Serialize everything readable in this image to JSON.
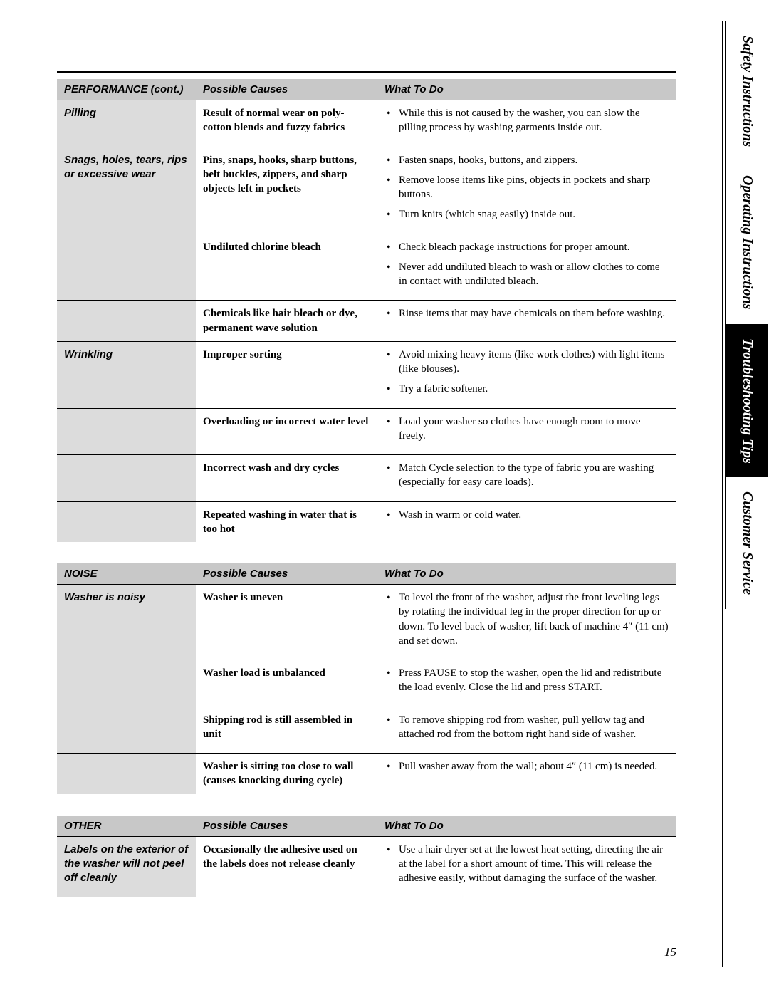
{
  "page_number": "15",
  "side_tabs": [
    {
      "label": "Safety Instructions",
      "style": "white"
    },
    {
      "label": "Operating Instructions",
      "style": "white"
    },
    {
      "label": "Troubleshooting Tips",
      "style": "black"
    },
    {
      "label": "Customer Service",
      "style": "white"
    }
  ],
  "tables": [
    {
      "headers": [
        "PERFORMANCE (cont.)",
        "Possible Causes",
        "What To Do"
      ],
      "rows": [
        {
          "problem": "Pilling",
          "cause": "Result of normal wear on poly-cotton blends and fuzzy fabrics",
          "todos": [
            "While this is not caused by the washer, you can slow the pilling process by washing garments inside out."
          ],
          "divider": true
        },
        {
          "problem": "Snags, holes, tears, rips or excessive wear",
          "cause": "Pins, snaps, hooks, sharp buttons, belt buckles, zippers, and sharp objects left in pockets",
          "todos": [
            "Fasten snaps, hooks, buttons, and zippers.",
            "Remove loose items like pins, objects in pockets and sharp buttons.",
            "Turn knits (which snag easily) inside out."
          ],
          "divider": true
        },
        {
          "problem": "",
          "cause": "Undiluted chlorine bleach",
          "todos": [
            "Check bleach package instructions for proper amount.",
            "Never add undiluted bleach to wash or allow clothes to come in contact with undiluted bleach."
          ],
          "divider": true
        },
        {
          "problem": "",
          "cause": "Chemicals like hair bleach or dye, permanent wave solution",
          "todos": [
            "Rinse items that may have chemicals on them before washing."
          ],
          "divider": true
        },
        {
          "problem": "Wrinkling",
          "cause": "Improper sorting",
          "todos": [
            "Avoid mixing heavy items (like work clothes) with light items (like blouses).",
            "Try a fabric softener."
          ],
          "divider": true
        },
        {
          "problem": "",
          "cause": "Overloading or incorrect water level",
          "todos": [
            "Load your washer so clothes have enough room to move freely."
          ],
          "divider": true
        },
        {
          "problem": "",
          "cause": "Incorrect wash and dry cycles",
          "todos": [
            "Match Cycle selection to the type of fabric you are washing (especially for easy care loads)."
          ],
          "divider": true
        },
        {
          "problem": "",
          "cause": "Repeated washing in water that is too hot",
          "todos": [
            "Wash in warm or cold water."
          ],
          "divider": false
        }
      ]
    },
    {
      "headers": [
        "NOISE",
        "Possible Causes",
        "What To Do"
      ],
      "rows": [
        {
          "problem": "Washer is noisy",
          "cause": "Washer is uneven",
          "todos": [
            "To level the front of the washer, adjust the front leveling legs by rotating the individual leg in the proper direction for up or down. To level back of washer, lift back of machine 4″ (11 cm) and set down."
          ],
          "divider": true
        },
        {
          "problem": "",
          "cause": "Washer load is unbalanced",
          "todos": [
            "Press PAUSE to stop the washer, open the lid and redistribute the load evenly. Close the lid and press START."
          ],
          "divider": true
        },
        {
          "problem": "",
          "cause": "Shipping rod is still assembled in unit",
          "todos": [
            "To remove shipping rod from washer, pull yellow tag and attached rod from the bottom right hand side of washer."
          ],
          "divider": true
        },
        {
          "problem": "",
          "cause": "Washer is sitting too close to wall (causes knocking during cycle)",
          "todos": [
            "Pull washer away from the wall; about 4″ (11 cm) is needed."
          ],
          "divider": false
        }
      ]
    },
    {
      "headers": [
        "OTHER",
        "Possible Causes",
        "What To Do"
      ],
      "rows": [
        {
          "problem": "Labels on the exterior of the washer will not peel off cleanly",
          "cause": "Occasionally the adhesive used on the labels does not release cleanly",
          "todos": [
            "Use a hair dryer set at the lowest heat setting, directing the air at the label for a short amount of time. This will release the adhesive easily, without damaging the surface of the washer."
          ],
          "divider": false
        }
      ]
    }
  ]
}
